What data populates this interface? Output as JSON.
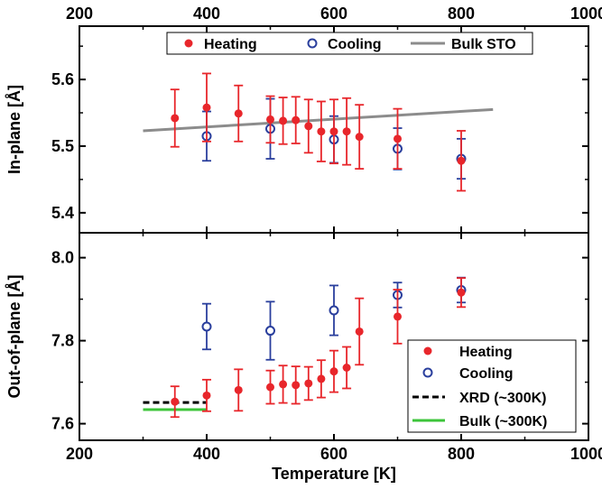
{
  "chart_data": [
    {
      "type": "scatter",
      "panel": "top",
      "ylabel": "In-plane [Å]",
      "xlim": [
        200,
        1000
      ],
      "ylim": [
        5.37,
        5.68
      ],
      "xticks": [
        "200",
        "400",
        "600",
        "800",
        "1000"
      ],
      "yticks": [
        {
          "value": 5.4,
          "label": "5.4"
        },
        {
          "value": 5.5,
          "label": "5.5"
        },
        {
          "value": 5.6,
          "label": "5.6"
        }
      ],
      "legend_position": "top",
      "series": [
        {
          "name": "Heating",
          "marker": "filled-circle",
          "color": "#e8262b",
          "points": [
            {
              "x": 350,
              "y": 5.542,
              "err": 0.043
            },
            {
              "x": 400,
              "y": 5.558,
              "err": 0.051
            },
            {
              "x": 450,
              "y": 5.549,
              "err": 0.042
            },
            {
              "x": 500,
              "y": 5.54,
              "err": 0.035
            },
            {
              "x": 520,
              "y": 5.538,
              "err": 0.035
            },
            {
              "x": 540,
              "y": 5.539,
              "err": 0.035
            },
            {
              "x": 560,
              "y": 5.53,
              "err": 0.04
            },
            {
              "x": 580,
              "y": 5.522,
              "err": 0.045
            },
            {
              "x": 600,
              "y": 5.522,
              "err": 0.048
            },
            {
              "x": 620,
              "y": 5.522,
              "err": 0.05
            },
            {
              "x": 640,
              "y": 5.514,
              "err": 0.048
            },
            {
              "x": 700,
              "y": 5.511,
              "err": 0.045
            },
            {
              "x": 800,
              "y": 5.478,
              "err": 0.045
            }
          ]
        },
        {
          "name": "Cooling",
          "marker": "open-circle",
          "color": "#2a3f9d",
          "points": [
            {
              "x": 400,
              "y": 5.515,
              "err": 0.037
            },
            {
              "x": 500,
              "y": 5.526,
              "err": 0.045
            },
            {
              "x": 600,
              "y": 5.51,
              "err": 0.035
            },
            {
              "x": 700,
              "y": 5.496,
              "err": 0.031
            },
            {
              "x": 800,
              "y": 5.481,
              "err": 0.03
            }
          ]
        },
        {
          "name": "Bulk STO",
          "marker": "line",
          "color": "#8c8c8c",
          "points": [
            {
              "x": 300,
              "y": 5.523
            },
            {
              "x": 850,
              "y": 5.555
            }
          ]
        }
      ]
    },
    {
      "type": "scatter",
      "panel": "bottom",
      "xlabel": "Temperature [K]",
      "ylabel": "Out-of-plane [Å]",
      "xlim": [
        200,
        1000
      ],
      "ylim": [
        7.56,
        8.06
      ],
      "xticks": [
        "200",
        "400",
        "600",
        "800",
        "1000"
      ],
      "yticks": [
        {
          "value": 7.6,
          "label": "7.6"
        },
        {
          "value": 7.8,
          "label": "7.8"
        },
        {
          "value": 8.0,
          "label": "8.0"
        }
      ],
      "legend_position": "bottom-right",
      "series": [
        {
          "name": "Heating",
          "marker": "filled-circle",
          "color": "#e8262b",
          "points": [
            {
              "x": 350,
              "y": 7.653,
              "err": 0.037
            },
            {
              "x": 400,
              "y": 7.668,
              "err": 0.038
            },
            {
              "x": 450,
              "y": 7.681,
              "err": 0.05
            },
            {
              "x": 500,
              "y": 7.688,
              "err": 0.04
            },
            {
              "x": 520,
              "y": 7.695,
              "err": 0.045
            },
            {
              "x": 540,
              "y": 7.693,
              "err": 0.045
            },
            {
              "x": 560,
              "y": 7.697,
              "err": 0.04
            },
            {
              "x": 580,
              "y": 7.708,
              "err": 0.045
            },
            {
              "x": 600,
              "y": 7.726,
              "err": 0.05
            },
            {
              "x": 620,
              "y": 7.735,
              "err": 0.05
            },
            {
              "x": 640,
              "y": 7.822,
              "err": 0.08
            },
            {
              "x": 700,
              "y": 7.858,
              "err": 0.065
            },
            {
              "x": 800,
              "y": 7.916,
              "err": 0.035
            }
          ]
        },
        {
          "name": "Cooling",
          "marker": "open-circle",
          "color": "#2a3f9d",
          "points": [
            {
              "x": 400,
              "y": 7.834,
              "err": 0.055
            },
            {
              "x": 500,
              "y": 7.824,
              "err": 0.07
            },
            {
              "x": 600,
              "y": 7.873,
              "err": 0.06
            },
            {
              "x": 700,
              "y": 7.91,
              "err": 0.03
            },
            {
              "x": 800,
              "y": 7.922,
              "err": 0.03
            }
          ]
        },
        {
          "name": "XRD (~300K)",
          "marker": "dashed-line",
          "color": "#000000",
          "points": [
            {
              "x": 300,
              "y": 7.651
            },
            {
              "x": 400,
              "y": 7.651
            }
          ]
        },
        {
          "name": "Bulk (~300K)",
          "marker": "line",
          "color": "#3cc43a",
          "points": [
            {
              "x": 300,
              "y": 7.634
            },
            {
              "x": 400,
              "y": 7.634
            }
          ]
        }
      ]
    }
  ]
}
